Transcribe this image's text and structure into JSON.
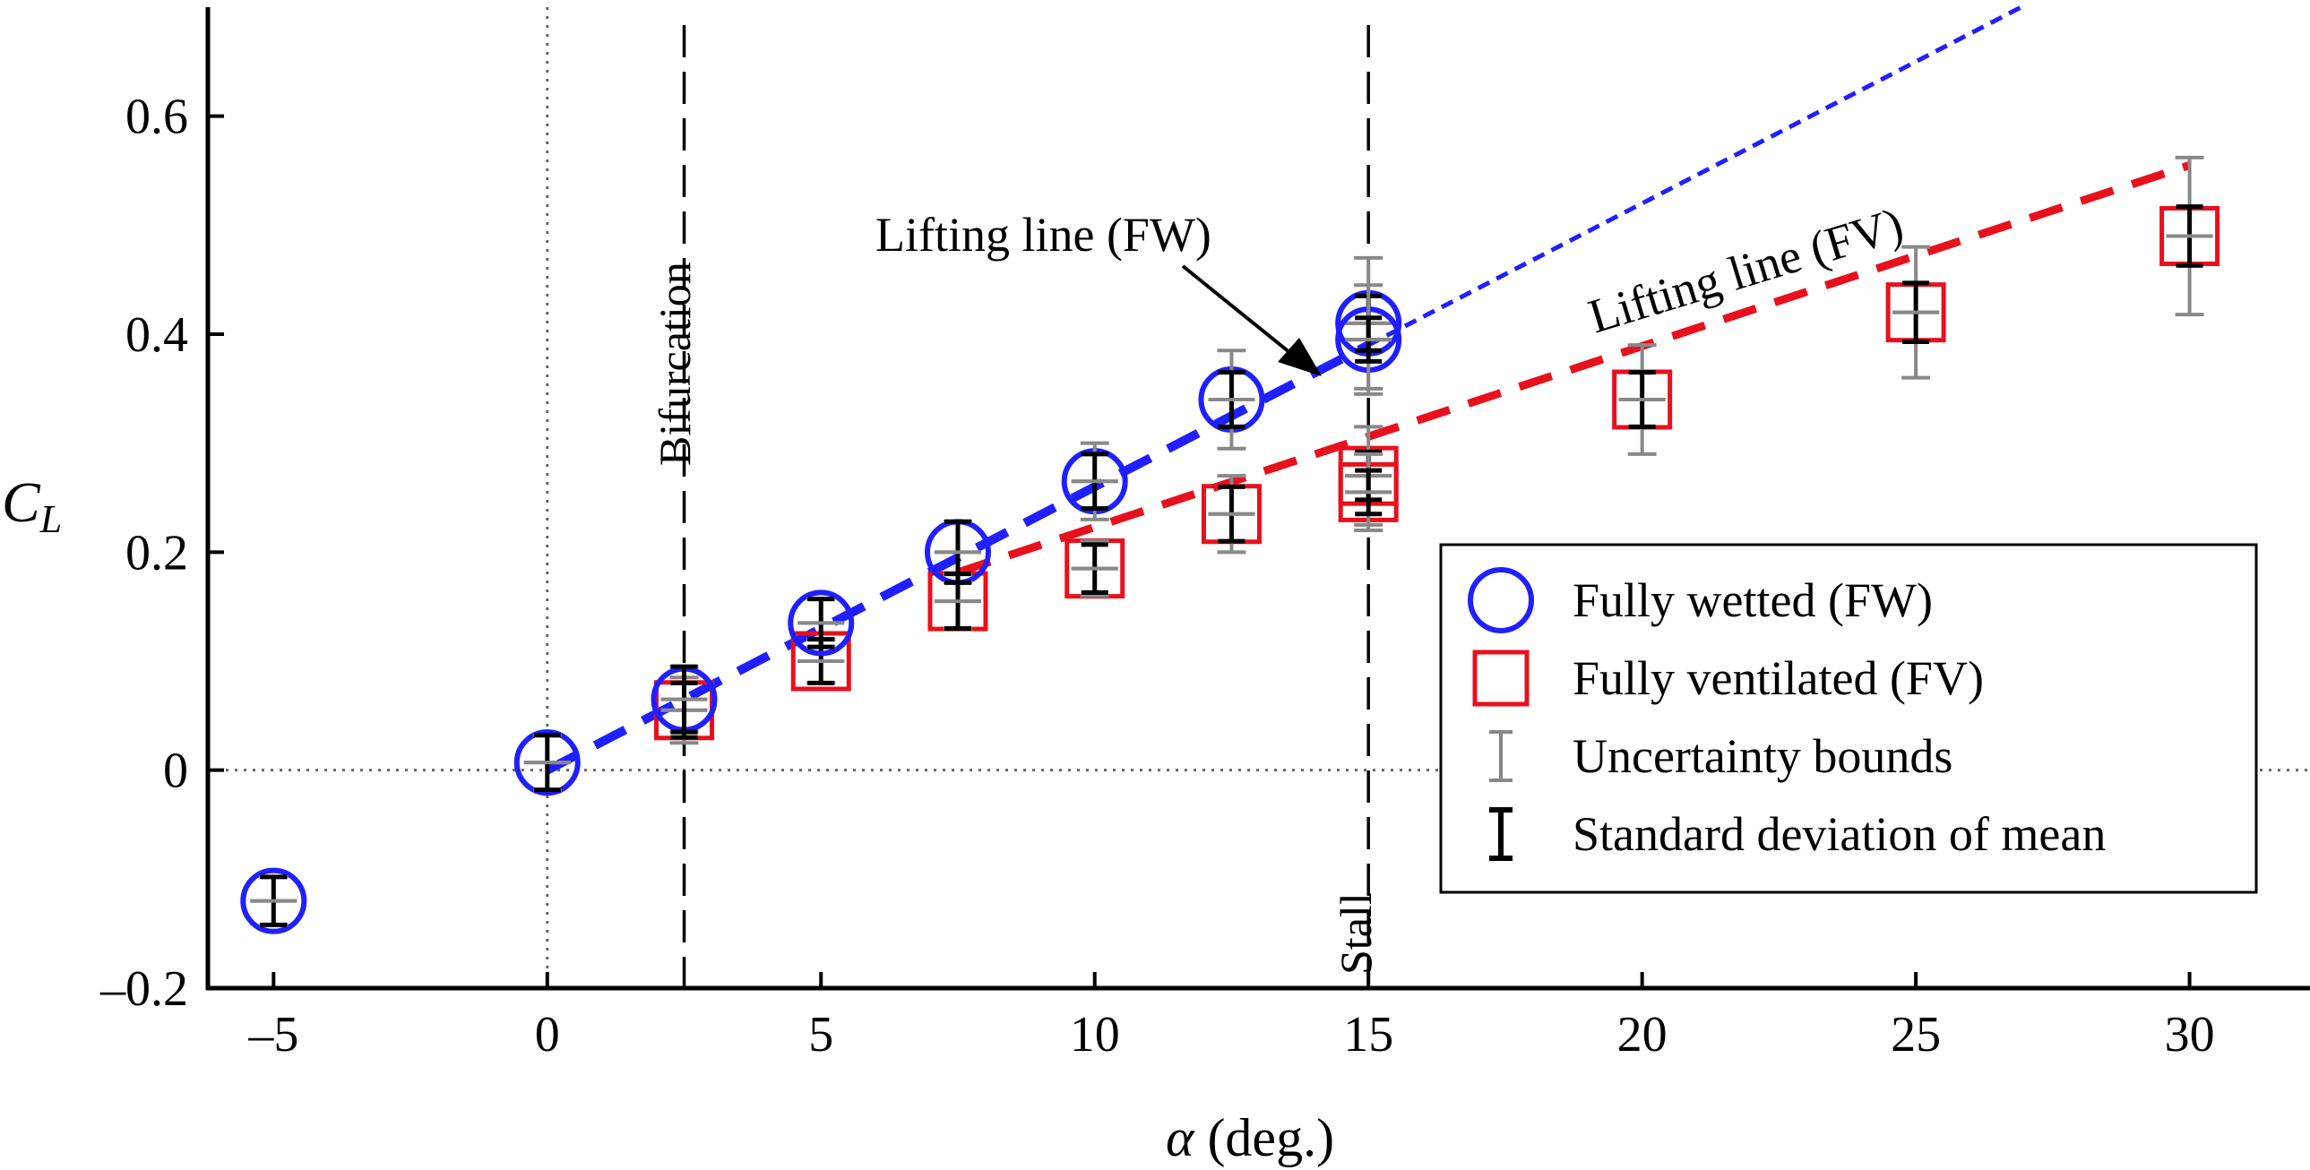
{
  "chart_data": {
    "type": "scatter",
    "xlabel_symbol": "α",
    "xlabel_unit": " (deg.)",
    "ylabel_main": "C",
    "ylabel_sub": "L",
    "xlim": [
      -6.2,
      32.2
    ],
    "ylim": [
      -0.2,
      0.7
    ],
    "x_ticks": [
      -5,
      0,
      5,
      10,
      15,
      20,
      25,
      30
    ],
    "x_tick_labels": [
      "–5",
      "0",
      "5",
      "10",
      "15",
      "20",
      "25",
      "30"
    ],
    "y_ticks": [
      -0.2,
      0,
      0.2,
      0.4,
      0.6
    ],
    "y_tick_labels": [
      "–0.2",
      "0",
      "0.2",
      "0.4",
      "0.6"
    ],
    "reference_lines": {
      "zero_y": 0,
      "zero_x": 0,
      "bifurcation_x": 2.5,
      "stall_x": 15
    },
    "series": [
      {
        "name": "Fully wetted (FW)",
        "marker": "circle",
        "color": "#1f1fff",
        "points": [
          {
            "x": -5,
            "y": -0.12,
            "sd": 0.022,
            "unc": 0.022
          },
          {
            "x": 0,
            "y": 0.007,
            "sd": 0.025,
            "unc": 0.025
          },
          {
            "x": 2.5,
            "y": 0.065,
            "sd": 0.03,
            "unc": 0.03
          },
          {
            "x": 5,
            "y": 0.135,
            "sd": 0.022,
            "unc": 0.022
          },
          {
            "x": 7.5,
            "y": 0.2,
            "sd": 0.028,
            "unc": 0.028
          },
          {
            "x": 10,
            "y": 0.265,
            "sd": 0.025,
            "unc": 0.035
          },
          {
            "x": 12.5,
            "y": 0.34,
            "sd": 0.025,
            "unc": 0.045
          },
          {
            "x": 15,
            "y": 0.41,
            "sd": 0.025,
            "unc": 0.06
          },
          {
            "x": 15,
            "y": 0.395,
            "sd": 0.02,
            "unc": 0.05
          }
        ]
      },
      {
        "name": "Fully ventilated (FV)",
        "marker": "square",
        "color": "#e8101c",
        "points": [
          {
            "x": 2.5,
            "y": 0.055,
            "sd": 0.025,
            "unc": 0.03
          },
          {
            "x": 5,
            "y": 0.1,
            "sd": 0.02,
            "unc": 0.02
          },
          {
            "x": 7.5,
            "y": 0.155,
            "sd": 0.025,
            "unc": 0.025
          },
          {
            "x": 10,
            "y": 0.185,
            "sd": 0.022,
            "unc": 0.025
          },
          {
            "x": 12.5,
            "y": 0.235,
            "sd": 0.025,
            "unc": 0.035
          },
          {
            "x": 15,
            "y": 0.27,
            "sd": 0.022,
            "unc": 0.045
          },
          {
            "x": 15,
            "y": 0.255,
            "sd": 0.02,
            "unc": 0.035
          },
          {
            "x": 20,
            "y": 0.34,
            "sd": 0.025,
            "unc": 0.05
          },
          {
            "x": 25,
            "y": 0.42,
            "sd": 0.027,
            "unc": 0.06
          },
          {
            "x": 30,
            "y": 0.49,
            "sd": 0.027,
            "unc": 0.072
          }
        ]
      }
    ],
    "lines": [
      {
        "name": "Lifting line (FW)",
        "color": "#1f1fff",
        "thick_x": [
          0,
          15
        ],
        "thin_x": [
          15,
          27
        ],
        "slope": 0.026,
        "intercept": 0.0
      },
      {
        "name": "Lifting line (FV)",
        "color": "#e8101c",
        "x": [
          7.5,
          30
        ],
        "slope": 0.0166,
        "intercept": 0.057
      }
    ],
    "annotations": {
      "bifurcation": "Bifurcation",
      "stall": "Stall",
      "fw_label": "Lifting line (FW)",
      "fv_label": "Lifting line (FV)"
    },
    "legend": {
      "position": "lower-right",
      "entries": [
        {
          "label": "Fully wetted (FW)",
          "kind": "circle"
        },
        {
          "label": "Fully ventilated (FV)",
          "kind": "square"
        },
        {
          "label": "Uncertainty bounds",
          "kind": "unc"
        },
        {
          "label": "Standard deviation of mean",
          "kind": "sd"
        }
      ]
    }
  }
}
